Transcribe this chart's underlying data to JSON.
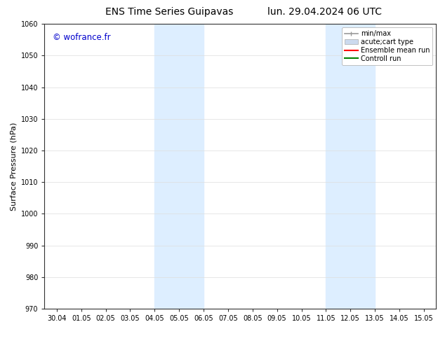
{
  "title_left": "ENS Time Series Guipavas",
  "title_right": "lun. 29.04.2024 06 UTC",
  "ylabel": "Surface Pressure (hPa)",
  "ylim": [
    970,
    1060
  ],
  "yticks": [
    970,
    980,
    990,
    1000,
    1010,
    1020,
    1030,
    1040,
    1050,
    1060
  ],
  "xlim_start": -0.5,
  "xlim_end": 15.5,
  "xtick_labels": [
    "30.04",
    "01.05",
    "02.05",
    "03.05",
    "04.05",
    "05.05",
    "06.05",
    "07.05",
    "08.05",
    "09.05",
    "10.05",
    "11.05",
    "12.05",
    "13.05",
    "14.05",
    "15.05"
  ],
  "xtick_positions": [
    0,
    1,
    2,
    3,
    4,
    5,
    6,
    7,
    8,
    9,
    10,
    11,
    12,
    13,
    14,
    15
  ],
  "shaded_bands": [
    {
      "x_start": 4.0,
      "x_end": 6.0
    },
    {
      "x_start": 11.0,
      "x_end": 13.0
    }
  ],
  "shaded_color": "#ddeeff",
  "watermark": "© wofrance.fr",
  "watermark_color": "#0000cc",
  "background_color": "#ffffff",
  "grid_color": "#dddddd",
  "title_fontsize": 10,
  "ylabel_fontsize": 8,
  "tick_fontsize": 7,
  "legend_fontsize": 7,
  "legend_entries": [
    {
      "label": "min/max",
      "color": "#999999",
      "style": "errorbar"
    },
    {
      "label": "acute;cart type",
      "color": "#ccdaee",
      "style": "rect"
    },
    {
      "label": "Ensemble mean run",
      "color": "#ff0000",
      "style": "line"
    },
    {
      "label": "Controll run",
      "color": "#008000",
      "style": "line"
    }
  ]
}
